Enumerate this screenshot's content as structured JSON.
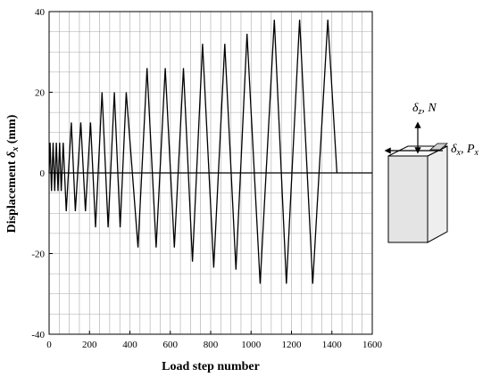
{
  "chart_data": {
    "type": "line",
    "xlabel": "Load step number",
    "ylabel_main": "Displacement ",
    "ylabel_sym": "δ",
    "ylabel_sub": "x",
    "ylabel_unit": " (mm)",
    "xlim": [
      0,
      1600
    ],
    "ylim": [
      -40,
      40
    ],
    "xticks": [
      0,
      200,
      400,
      600,
      800,
      1000,
      1200,
      1400,
      1600
    ],
    "yticks": [
      -40,
      -20,
      0,
      20,
      40
    ],
    "grid": true,
    "series": [
      {
        "points": [
          [
            0,
            0
          ],
          [
            5,
            7.5
          ],
          [
            12,
            -4.5
          ],
          [
            20,
            7.5
          ],
          [
            28,
            -4.5
          ],
          [
            36,
            7.5
          ],
          [
            44,
            -4.5
          ],
          [
            52,
            7.5
          ],
          [
            60,
            -4.5
          ],
          [
            70,
            7.5
          ],
          [
            85,
            -9.5
          ],
          [
            110,
            12.5
          ],
          [
            130,
            -9.5
          ],
          [
            157,
            12.5
          ],
          [
            180,
            -9.5
          ],
          [
            205,
            12.5
          ],
          [
            230,
            -13.5
          ],
          [
            262,
            20
          ],
          [
            292,
            -13.5
          ],
          [
            323,
            20
          ],
          [
            352,
            -13.5
          ],
          [
            382,
            20
          ],
          [
            440,
            -18.5
          ],
          [
            485,
            26
          ],
          [
            530,
            -18.5
          ],
          [
            575,
            26
          ],
          [
            620,
            -18.5
          ],
          [
            665,
            26
          ],
          [
            710,
            -22
          ],
          [
            760,
            32
          ],
          [
            815,
            -23.5
          ],
          [
            870,
            32
          ],
          [
            925,
            -24
          ],
          [
            980,
            34.5
          ],
          [
            1045,
            -27.5
          ],
          [
            1115,
            38
          ],
          [
            1175,
            -27.5
          ],
          [
            1240,
            38
          ],
          [
            1305,
            -27.5
          ],
          [
            1380,
            38
          ],
          [
            1425,
            0
          ]
        ]
      }
    ]
  },
  "inset": {
    "label_top_sym": "δ",
    "label_top_sub": "z",
    "label_top_rest": ", N",
    "label_right_sym": "δ",
    "label_right_sub": "x",
    "label_right_rest": ", P",
    "label_right_sub2": "x"
  }
}
